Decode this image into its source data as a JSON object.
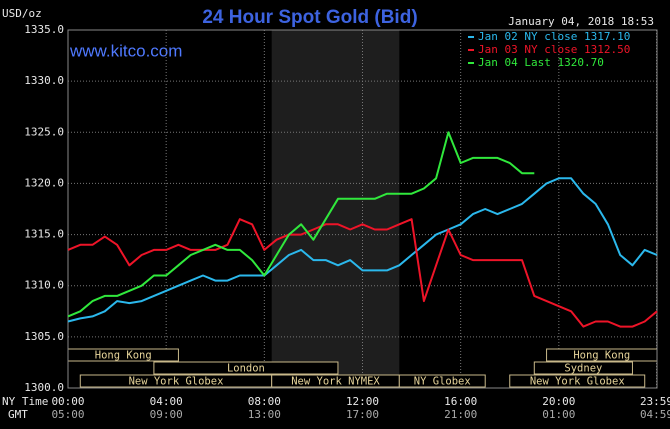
{
  "chart_data": {
    "type": "line",
    "title": "24 Hour Spot Gold (Bid)",
    "watermark": "www.kitco.com",
    "timestamp": "January 04, 2018 18:53",
    "y_label": "USD/oz",
    "x_label": "NY Time",
    "x2_label": "GMT",
    "x": [
      0,
      0.5,
      1,
      1.5,
      2,
      2.5,
      3,
      3.5,
      4,
      4.5,
      5,
      5.5,
      6,
      6.5,
      7,
      7.5,
      8,
      8.5,
      9,
      9.5,
      10,
      10.5,
      11,
      11.5,
      12,
      12.5,
      13,
      13.5,
      14,
      14.5,
      15,
      15.5,
      16,
      16.5,
      17,
      17.5,
      18,
      18.5,
      19,
      19.5,
      20,
      20.5,
      21,
      21.5,
      22,
      22.5,
      23,
      23.5,
      24
    ],
    "series": [
      {
        "name": "Jan 02 NY close 1317.10",
        "color": "#2bb8ec",
        "values": [
          1306.5,
          1306.8,
          1307,
          1307.5,
          1308.5,
          1308.3,
          1308.5,
          1309,
          1309.5,
          1310,
          1310.5,
          1311,
          1310.5,
          1310.5,
          1311,
          1311,
          1311,
          1312,
          1313,
          1313.5,
          1312.5,
          1312.5,
          1312,
          1312.5,
          1311.5,
          1311.5,
          1311.5,
          1312,
          1313,
          1314,
          1315,
          1315.5,
          1316,
          1317,
          1317.5,
          1317,
          1317.5,
          1318,
          1319,
          1320,
          1320.5,
          1320.5,
          1319,
          1318,
          1316,
          1313,
          1312,
          1313.5,
          1313
        ]
      },
      {
        "name": "Jan 03 NY close 1312.50",
        "color": "#ee1428",
        "values": [
          1313.5,
          1314,
          1314,
          1314.8,
          1314,
          1312,
          1313,
          1313.5,
          1313.5,
          1314,
          1313.5,
          1313.5,
          1313.5,
          1314,
          1316.5,
          1316,
          1313.5,
          1314.5,
          1315,
          1315,
          1315.5,
          1316,
          1316,
          1315.5,
          1316,
          1315.5,
          1315.5,
          1316,
          1316.5,
          1308.5,
          1312,
          1315.5,
          1313,
          1312.5,
          1312.5,
          1312.5,
          1312.5,
          1312.5,
          1309,
          1308.5,
          1308,
          1307.5,
          1306,
          1306.5,
          1306.5,
          1306,
          1306,
          1306.5,
          1307.5
        ]
      },
      {
        "name": "Jan 04 Last 1320.70",
        "color": "#30e83c",
        "values": [
          1307,
          1307.5,
          1308.5,
          1309,
          1309,
          1309.5,
          1310,
          1311,
          1311,
          1312,
          1313,
          1313.5,
          1314,
          1313.5,
          1313.5,
          1312.5,
          1311,
          1313,
          1315,
          1316,
          1314.5,
          1316.5,
          1318.5,
          1318.5,
          1318.5,
          1318.5,
          1319,
          1319,
          1319,
          1319.5,
          1320.5,
          1325,
          1322,
          1322.5,
          1322.5,
          1322.5,
          1322,
          1321,
          1321,
          null,
          null,
          null,
          null,
          null,
          null,
          null,
          null,
          null,
          null
        ]
      }
    ],
    "xlim": [
      0,
      24
    ],
    "ylim": [
      1300,
      1335
    ],
    "yticks": [
      {
        "value": 1300,
        "label": "1300.0"
      },
      {
        "value": 1305,
        "label": "1305.0"
      },
      {
        "value": 1310,
        "label": "1310.0"
      },
      {
        "value": 1315,
        "label": "1315.0"
      },
      {
        "value": 1320,
        "label": "1320.0"
      },
      {
        "value": 1325,
        "label": "1325.0"
      },
      {
        "value": 1330,
        "label": "1330.0"
      },
      {
        "value": 1335,
        "label": "1335.0"
      }
    ],
    "xticks": [
      {
        "value": 0,
        "label": "00:00"
      },
      {
        "value": 4,
        "label": "04:00"
      },
      {
        "value": 8,
        "label": "08:00"
      },
      {
        "value": 12,
        "label": "12:00"
      },
      {
        "value": 16,
        "label": "16:00"
      },
      {
        "value": 20,
        "label": "20:00"
      },
      {
        "value": 23.98,
        "label": "23:59"
      }
    ],
    "x2ticks": [
      {
        "value": 0,
        "label": "05:00"
      },
      {
        "value": 4,
        "label": "09:00"
      },
      {
        "value": 8,
        "label": "13:00"
      },
      {
        "value": 12,
        "label": "17:00"
      },
      {
        "value": 16,
        "label": "21:00"
      },
      {
        "value": 20,
        "label": "01:00"
      },
      {
        "value": 23.98,
        "label": "04:59"
      }
    ],
    "grid": true,
    "legend": "top-right",
    "sessions": [
      {
        "name": "Hong Kong",
        "start": 0,
        "end": 4.5,
        "row": 0
      },
      {
        "name": "Hong Kong",
        "start": 19.5,
        "end": 24,
        "row": 0
      },
      {
        "name": "London",
        "start": 3.5,
        "end": 11,
        "row": 1
      },
      {
        "name": "Sydney",
        "start": 19,
        "end": 23,
        "row": 1
      },
      {
        "name": "New York Globex",
        "start": 0.5,
        "end": 8.3,
        "row": 2
      },
      {
        "name": "New York NYMEX",
        "start": 8.3,
        "end": 13.5,
        "row": 2,
        "shade": true
      },
      {
        "name": "NY Globex",
        "start": 13.5,
        "end": 17,
        "row": 2
      },
      {
        "name": "New York Globex",
        "start": 18,
        "end": 23.5,
        "row": 2
      }
    ]
  }
}
